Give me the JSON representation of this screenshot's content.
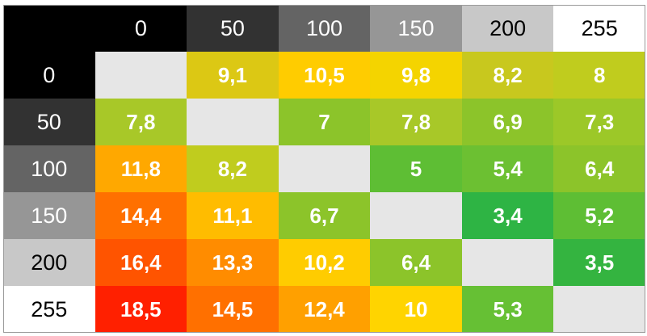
{
  "chart_data": {
    "type": "heatmap",
    "columns": [
      "0",
      "50",
      "100",
      "150",
      "200",
      "255"
    ],
    "rows": [
      "0",
      "50",
      "100",
      "150",
      "200",
      "255"
    ],
    "header_colors": [
      "#000000",
      "#323232",
      "#646464",
      "#969696",
      "#c8c8c8",
      "#ffffff"
    ],
    "header_text_colors": [
      "#ffffff",
      "#ffffff",
      "#ffffff",
      "#ffffff",
      "#000000",
      "#000000"
    ],
    "empty_color": "#e6e6e6",
    "values": [
      [
        null,
        "9,1",
        "10,5",
        "9,8",
        "8,2",
        "8"
      ],
      [
        "7,8",
        null,
        "7",
        "7,8",
        "6,9",
        "7,3"
      ],
      [
        "11,8",
        "8,2",
        null,
        "5",
        "5,4",
        "6,4"
      ],
      [
        "14,4",
        "11,1",
        "6,7",
        null,
        "3,4",
        "5,2"
      ],
      [
        "16,4",
        "13,3",
        "10,2",
        "6,4",
        null,
        "3,5"
      ],
      [
        "18,5",
        "14,5",
        "12,4",
        "10",
        "5,3",
        null
      ]
    ],
    "cell_colors": [
      [
        "#e6e6e6",
        "#dcc814",
        "#ffcc00",
        "#f4d400",
        "#c8c81e",
        "#c0cc1e"
      ],
      [
        "#a8c828",
        "#e6e6e6",
        "#8cc42a",
        "#a8c828",
        "#8cc42a",
        "#9cc828"
      ],
      [
        "#ffa800",
        "#c0cc1e",
        "#e6e6e6",
        "#5ebe34",
        "#6cc032",
        "#8cc42a"
      ],
      [
        "#ff7000",
        "#ffbc00",
        "#8cc42a",
        "#e6e6e6",
        "#2eb444",
        "#5ebe34"
      ],
      [
        "#ff5400",
        "#ff8c00",
        "#ffcc00",
        "#8cc42a",
        "#e6e6e6",
        "#34b440"
      ],
      [
        "#ff2000",
        "#ff7000",
        "#ffa000",
        "#ffd400",
        "#66c034",
        "#e6e6e6"
      ]
    ]
  }
}
